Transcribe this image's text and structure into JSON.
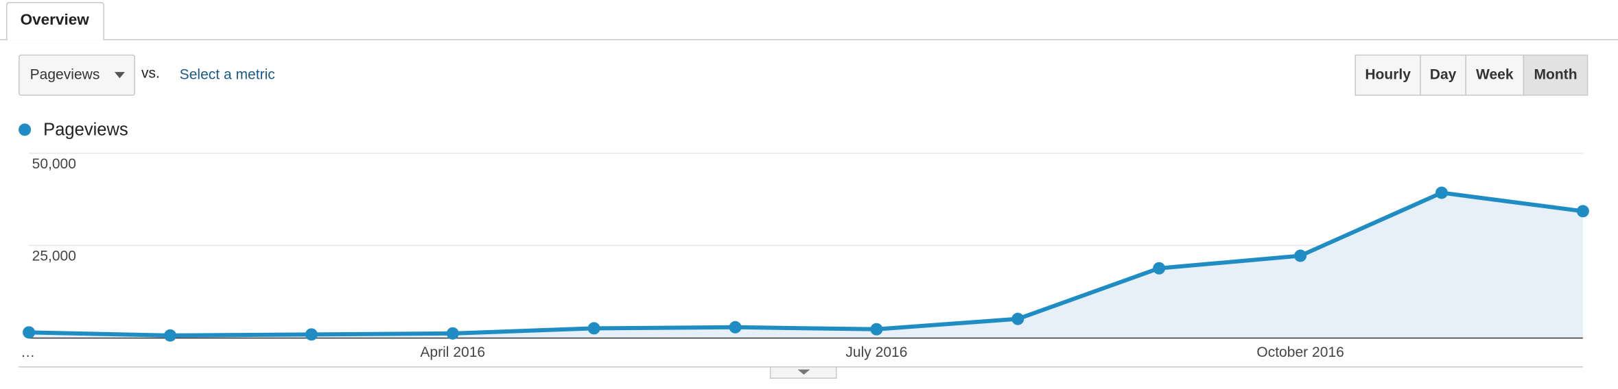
{
  "tabs": {
    "overview": "Overview"
  },
  "controls": {
    "metric": "Pageviews",
    "vs": "vs.",
    "select_metric": "Select a metric",
    "intervals": [
      "Hourly",
      "Day",
      "Week",
      "Month"
    ],
    "active_interval": "Month"
  },
  "chart_data": {
    "type": "line",
    "categories": [
      "…",
      null,
      null,
      "April 2016",
      null,
      null,
      "July 2016",
      null,
      null,
      "October 2016",
      null,
      null
    ],
    "series": [
      {
        "name": "Pageviews",
        "color": "#1f8dc4",
        "values": [
          1400,
          560,
          840,
          1120,
          2500,
          2800,
          2250,
          5060,
          18800,
          22200,
          39300,
          34300
        ]
      }
    ],
    "area_color": "#e7f0f8",
    "ylim": [
      0,
      50000
    ],
    "yticks": [
      {
        "value": 25000,
        "label": "25,000"
      },
      {
        "value": 50000,
        "label": "50,000"
      }
    ],
    "grid": true
  }
}
